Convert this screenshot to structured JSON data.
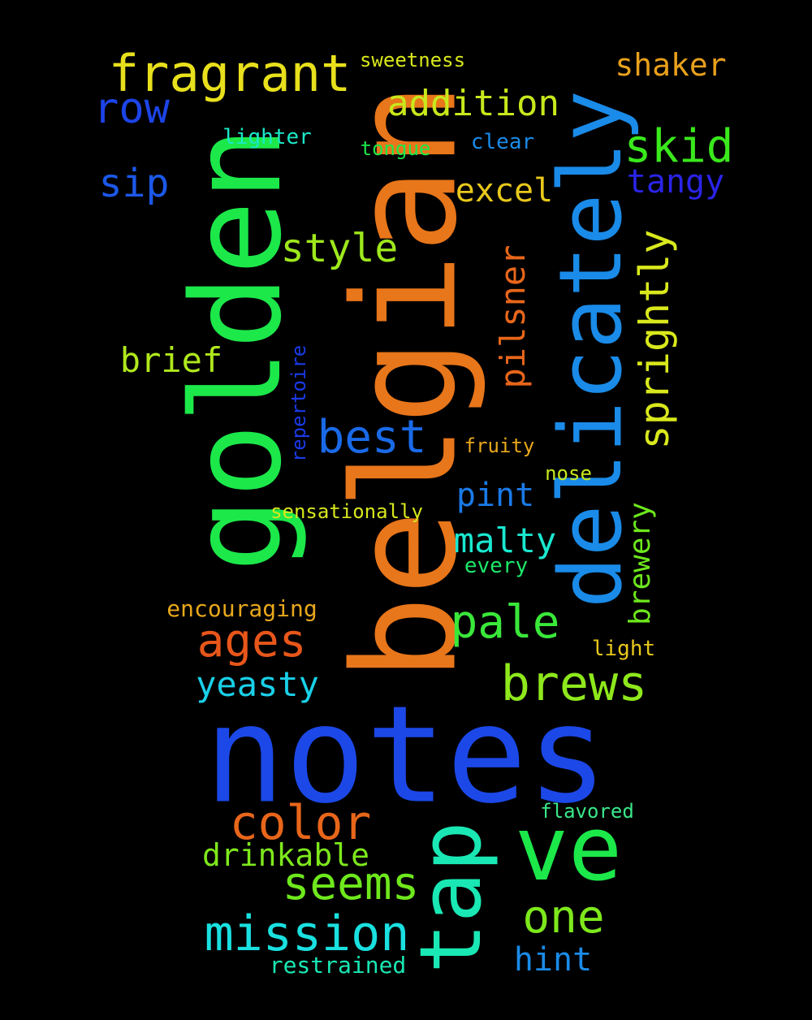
{
  "words": [
    {
      "text": "notes",
      "color": "#1c48e8",
      "orientation": "horizontal"
    },
    {
      "text": "belgian",
      "color": "#e8761a",
      "orientation": "vertical"
    },
    {
      "text": "golden",
      "color": "#1ce84a",
      "orientation": "vertical"
    },
    {
      "text": "delicately",
      "color": "#1a8be8",
      "orientation": "vertical"
    },
    {
      "text": "tap",
      "color": "#1ae8b4",
      "orientation": "vertical"
    },
    {
      "text": "ve",
      "color": "#1ce84a",
      "orientation": "horizontal"
    },
    {
      "text": "fragrant",
      "color": "#e8e01c",
      "orientation": "horizontal"
    },
    {
      "text": "mission",
      "color": "#1ae0e0",
      "orientation": "horizontal"
    },
    {
      "text": "color",
      "color": "#e8661a",
      "orientation": "horizontal"
    },
    {
      "text": "brews",
      "color": "#8ee81c",
      "orientation": "horizontal"
    },
    {
      "text": "seems",
      "color": "#6ee81c",
      "orientation": "horizontal"
    },
    {
      "text": "ages",
      "color": "#e8561a",
      "orientation": "horizontal"
    },
    {
      "text": "pale",
      "color": "#3ae83a",
      "orientation": "horizontal"
    },
    {
      "text": "one",
      "color": "#7ee81c",
      "orientation": "horizontal"
    },
    {
      "text": "sprightly",
      "color": "#d8e81c",
      "orientation": "vertical"
    },
    {
      "text": "addition",
      "color": "#c8e81c",
      "orientation": "horizontal"
    },
    {
      "text": "skid",
      "color": "#3ae81c",
      "orientation": "horizontal"
    },
    {
      "text": "style",
      "color": "#9ee81c",
      "orientation": "horizontal"
    },
    {
      "text": "best",
      "color": "#1a6ae8",
      "orientation": "horizontal"
    },
    {
      "text": "row",
      "color": "#1c44e8",
      "orientation": "horizontal"
    },
    {
      "text": "yeasty",
      "color": "#1ad0e8",
      "orientation": "horizontal"
    },
    {
      "text": "sip",
      "color": "#1c58e8",
      "orientation": "horizontal"
    },
    {
      "text": "drinkable",
      "color": "#7ee81c",
      "orientation": "horizontal"
    },
    {
      "text": "malty",
      "color": "#1ae8d0",
      "orientation": "horizontal"
    },
    {
      "text": "brief",
      "color": "#b0e81c",
      "orientation": "horizontal"
    },
    {
      "text": "excel",
      "color": "#e8c81c",
      "orientation": "horizontal"
    },
    {
      "text": "tangy",
      "color": "#2a24e8",
      "orientation": "horizontal"
    },
    {
      "text": "hint",
      "color": "#1a8be8",
      "orientation": "horizontal"
    },
    {
      "text": "shaker",
      "color": "#e8a01c",
      "orientation": "horizontal"
    },
    {
      "text": "pilsner",
      "color": "#e8661a",
      "orientation": "vertical"
    },
    {
      "text": "pint",
      "color": "#1a7ae8",
      "orientation": "horizontal"
    },
    {
      "text": "brewery",
      "color": "#6ee81c",
      "orientation": "vertical"
    },
    {
      "text": "encouraging",
      "color": "#e8a81c",
      "orientation": "horizontal"
    },
    {
      "text": "restrained",
      "color": "#1ae8b4",
      "orientation": "horizontal"
    },
    {
      "text": "sensationally",
      "color": "#d8e81c",
      "orientation": "horizontal"
    },
    {
      "text": "flavored",
      "color": "#3ae88a",
      "orientation": "horizontal"
    },
    {
      "text": "lighter",
      "color": "#1ae8c8",
      "orientation": "horizontal"
    },
    {
      "text": "clear",
      "color": "#1a8be8",
      "orientation": "horizontal"
    },
    {
      "text": "repertoire",
      "color": "#1a3ae8",
      "orientation": "vertical"
    },
    {
      "text": "every",
      "color": "#1ce86a",
      "orientation": "horizontal"
    },
    {
      "text": "light",
      "color": "#e8c81c",
      "orientation": "horizontal"
    },
    {
      "text": "sweetness",
      "color": "#d8e81c",
      "orientation": "horizontal"
    },
    {
      "text": "tongue",
      "color": "#1ce84a",
      "orientation": "horizontal"
    },
    {
      "text": "fruity",
      "color": "#e8a81c",
      "orientation": "horizontal"
    },
    {
      "text": "nose",
      "color": "#c8e81c",
      "orientation": "horizontal"
    }
  ]
}
